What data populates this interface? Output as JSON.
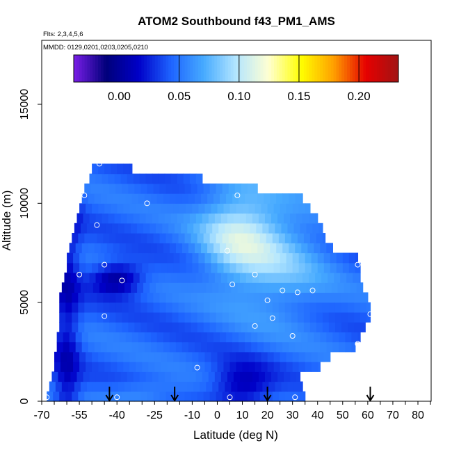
{
  "chart_data": {
    "type": "heatmap",
    "title": "ATOM2 Southbound f43_PM1_AMS",
    "flights_note": "Flts: 2,3,4,5,6",
    "dates_note": "MMDD: 0129,0201,0203,0205,0210",
    "xlabel": "Latitude (deg N)",
    "ylabel": "Altitude (m)",
    "xlim": [
      -70,
      85
    ],
    "ylim": [
      0,
      17500
    ],
    "x_ticks": [
      -70,
      -55,
      -40,
      -25,
      -10,
      0,
      10,
      20,
      30,
      40,
      50,
      60,
      70,
      80
    ],
    "x_tick_labels": [
      "-70",
      "-55",
      "-40",
      "-25",
      "-10",
      "0",
      "10",
      "20",
      "30",
      "40",
      "50",
      "60",
      "70",
      "80"
    ],
    "y_ticks": [
      0,
      5000,
      10000,
      15000
    ],
    "y_tick_labels": [
      "0",
      "5000",
      "10000",
      "15000"
    ],
    "colorbar": {
      "range": [
        -0.038,
        0.233
      ],
      "ticks": [
        0.0,
        0.05,
        0.1,
        0.15,
        0.2
      ],
      "tick_labels": [
        "0.00",
        "0.05",
        "0.10",
        "0.15",
        "0.20"
      ],
      "colors": [
        "#7a1ee8",
        "#00007a",
        "#0000c8",
        "#1e64ff",
        "#46aaff",
        "#b4e6ff",
        "#ffffd2",
        "#ffff00",
        "#ffa000",
        "#e60000",
        "#a01414"
      ]
    },
    "colors": {
      "accent": "#000000",
      "axis": "#000000"
    },
    "profile_bounds": [
      {
        "alt": 0,
        "lat_min": -68,
        "lat_max": 35
      },
      {
        "alt": 500,
        "lat_min": -67,
        "lat_max": 34
      },
      {
        "alt": 1000,
        "lat_min": -66,
        "lat_max": 33
      },
      {
        "alt": 1500,
        "lat_min": -65,
        "lat_max": 41
      },
      {
        "alt": 2000,
        "lat_min": -65,
        "lat_max": 45
      },
      {
        "alt": 2500,
        "lat_min": -64,
        "lat_max": 55
      },
      {
        "alt": 3000,
        "lat_min": -64,
        "lat_max": 57
      },
      {
        "alt": 3500,
        "lat_min": -63,
        "lat_max": 59
      },
      {
        "alt": 4000,
        "lat_min": -63,
        "lat_max": 61
      },
      {
        "alt": 4500,
        "lat_min": -63,
        "lat_max": 61
      },
      {
        "alt": 5000,
        "lat_min": -63,
        "lat_max": 60
      },
      {
        "alt": 5500,
        "lat_min": -62,
        "lat_max": 58
      },
      {
        "alt": 6000,
        "lat_min": -61,
        "lat_max": 57
      },
      {
        "alt": 6500,
        "lat_min": -60,
        "lat_max": 57
      },
      {
        "alt": 7000,
        "lat_min": -60,
        "lat_max": 56
      },
      {
        "alt": 7500,
        "lat_min": -59,
        "lat_max": 46
      },
      {
        "alt": 8000,
        "lat_min": -58,
        "lat_max": 43
      },
      {
        "alt": 8500,
        "lat_min": -57,
        "lat_max": 42
      },
      {
        "alt": 9000,
        "lat_min": -56,
        "lat_max": 40
      },
      {
        "alt": 9500,
        "lat_min": -55,
        "lat_max": 37
      },
      {
        "alt": 10000,
        "lat_min": -54,
        "lat_max": 34
      },
      {
        "alt": 10500,
        "lat_min": -53,
        "lat_max": 16
      },
      {
        "alt": 11000,
        "lat_min": -51,
        "lat_max": -6
      },
      {
        "alt": 11500,
        "lat_min": -50,
        "lat_max": -34
      }
    ],
    "sample_points": [
      {
        "lat": -47,
        "alt": 12000
      },
      {
        "lat": -53,
        "alt": 10400
      },
      {
        "lat": -28,
        "alt": 10000
      },
      {
        "lat": -48,
        "alt": 8900
      },
      {
        "lat": 8,
        "alt": 10400
      },
      {
        "lat": 4,
        "alt": 7600
      },
      {
        "lat": -45,
        "alt": 6900
      },
      {
        "lat": -55,
        "alt": 6400
      },
      {
        "lat": -38,
        "alt": 6100
      },
      {
        "lat": 6,
        "alt": 5900
      },
      {
        "lat": 15,
        "alt": 6400
      },
      {
        "lat": 26,
        "alt": 5600
      },
      {
        "lat": 32,
        "alt": 5500
      },
      {
        "lat": 38,
        "alt": 5600
      },
      {
        "lat": 56,
        "alt": 6900
      },
      {
        "lat": 20,
        "alt": 5100
      },
      {
        "lat": -45,
        "alt": 4300
      },
      {
        "lat": 22,
        "alt": 4200
      },
      {
        "lat": 15,
        "alt": 3800
      },
      {
        "lat": 30,
        "alt": 3300
      },
      {
        "lat": 56,
        "alt": 2900
      },
      {
        "lat": 61,
        "alt": 4400
      },
      {
        "lat": -8,
        "alt": 1700
      },
      {
        "lat": -40,
        "alt": 200
      },
      {
        "lat": 5,
        "alt": 200
      },
      {
        "lat": 31,
        "alt": 200
      },
      {
        "lat": -68,
        "alt": 200
      }
    ],
    "arrow_latitudes": [
      -43,
      -17,
      20,
      61
    ]
  }
}
